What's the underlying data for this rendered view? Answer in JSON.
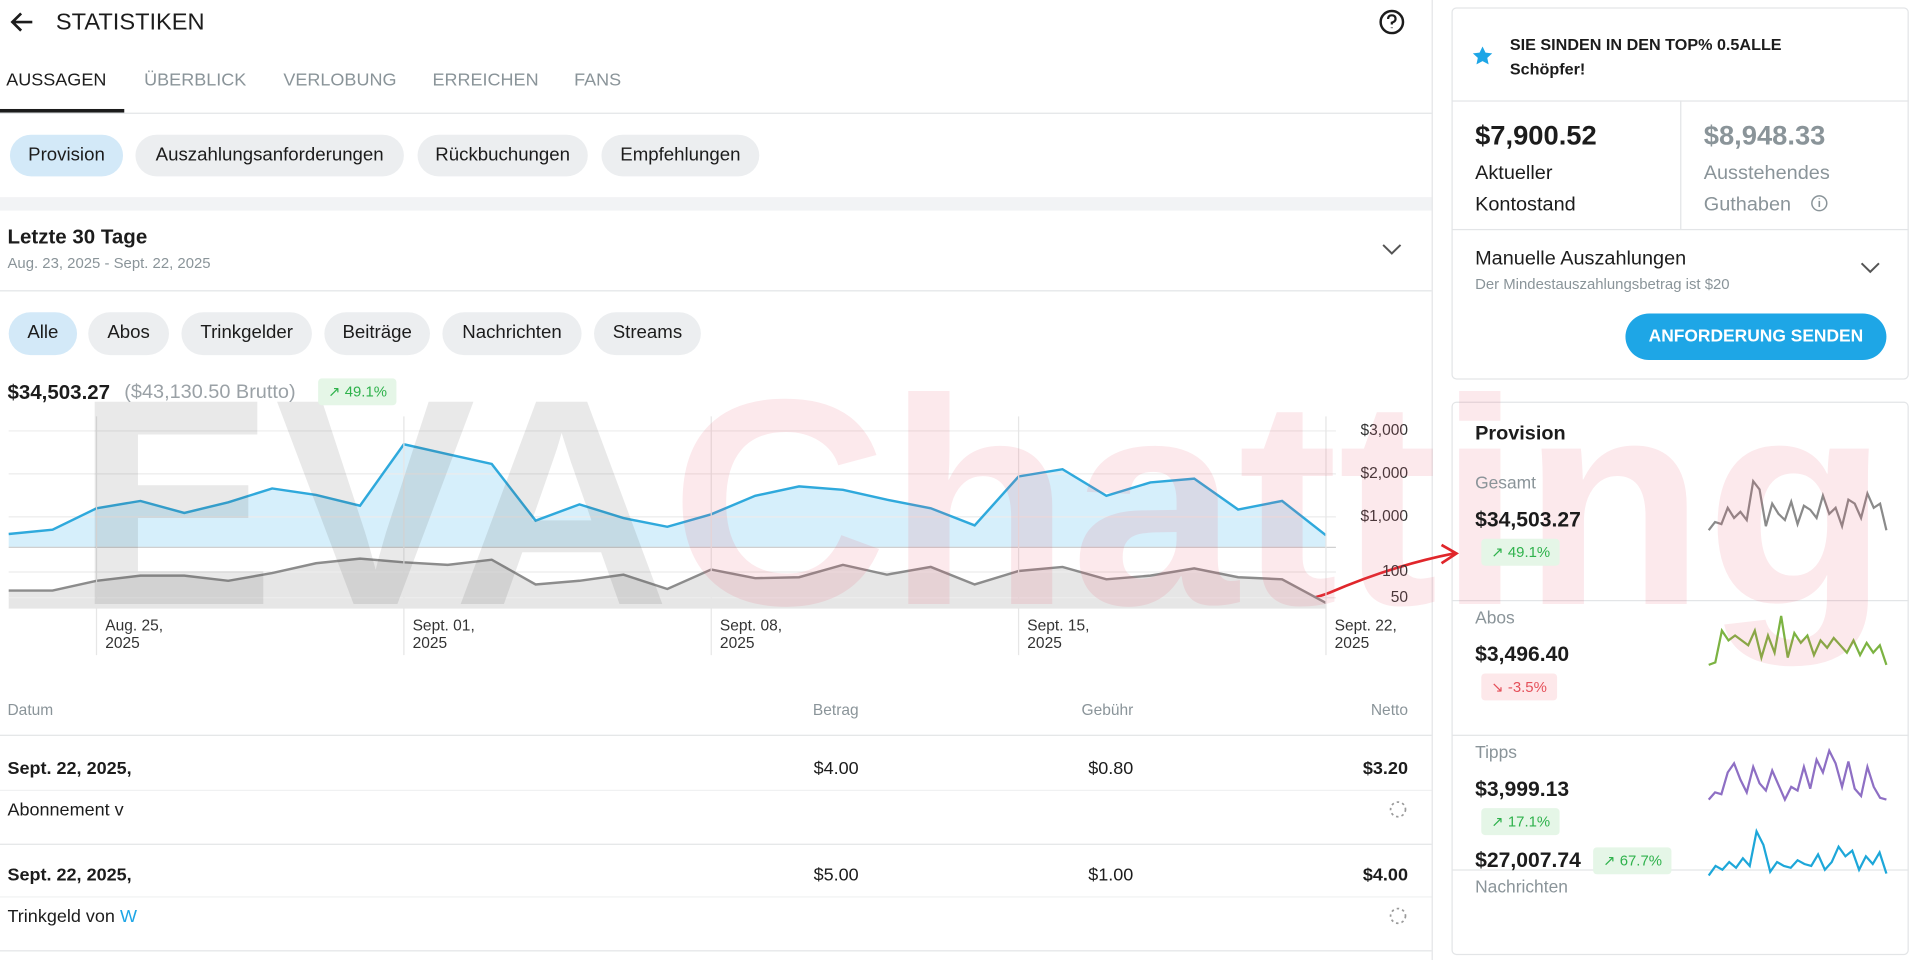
{
  "header": {
    "title": "STATISTIKEN"
  },
  "tabs": [
    "AUSSAGEN",
    "ÜBERBLICK",
    "VERLOBUNG",
    "ERREICHEN",
    "FANS"
  ],
  "subtabs": [
    "Provision",
    "Auszahlungsanforderungen",
    "Rückbuchungen",
    "Empfehlungen"
  ],
  "period": {
    "title": "Letzte 30 Tage",
    "range": "Aug. 23, 2025 - Sept. 22, 2025"
  },
  "filters": [
    "Alle",
    "Abos",
    "Trinkgelder",
    "Beiträge",
    "Nachrichten",
    "Streams"
  ],
  "summary": {
    "net": "$34,503.27",
    "gross": "($43,130.50 Brutto)",
    "change": "49.1%"
  },
  "chart_data": [
    {
      "type": "area",
      "color": "#2fa9dc",
      "fill": "#d6effb",
      "grid": true,
      "ylim": [
        290,
        3340
      ],
      "yticks": [
        {
          "value": 1000,
          "label": "$1,000"
        },
        {
          "value": 2000,
          "label": "$2,000"
        },
        {
          "value": 3000,
          "label": "$3,000"
        }
      ],
      "values": [
        600,
        700,
        1200,
        1370,
        1090,
        1340,
        1660,
        1510,
        1260,
        2690,
        2460,
        2230,
        910,
        1290,
        970,
        770,
        1060,
        1490,
        1710,
        1630,
        1400,
        1200,
        800,
        1940,
        2110,
        1490,
        1800,
        1890,
        1170,
        1370,
        570
      ]
    },
    {
      "type": "area",
      "color": "#8c8c8c",
      "fill": "#e6e6e6",
      "grid": true,
      "ylim": [
        29,
        148
      ],
      "yticks": [
        50,
        100
      ],
      "categories": [
        null,
        null,
        "Aug. 25, 2025",
        null,
        null,
        null,
        null,
        null,
        null,
        "Sept. 01, 2025",
        null,
        null,
        null,
        null,
        null,
        null,
        "Sept. 08, 2025",
        null,
        null,
        null,
        null,
        null,
        null,
        "Sept. 15, 2025",
        null,
        null,
        null,
        null,
        null,
        null,
        "Sept. 22, 2025"
      ],
      "values": [
        64,
        64,
        83,
        93,
        93,
        83,
        98,
        117,
        126,
        119,
        114,
        124,
        76,
        83,
        95,
        67,
        105,
        88,
        90,
        114,
        95,
        110,
        76,
        102,
        110,
        86,
        93,
        107,
        90,
        86,
        40
      ]
    }
  ],
  "table": {
    "headers": [
      "Datum",
      "Betrag",
      "Gebühr",
      "Netto"
    ],
    "rows": [
      {
        "date": "Sept. 22, 2025,",
        "amount": "$4.00",
        "fee": "$0.80",
        "net": "$3.20",
        "description": "Abonnement v"
      },
      {
        "date": "Sept. 22, 2025,",
        "amount": "$5.00",
        "fee": "$1.00",
        "net": "$4.00",
        "description": "Trinkgeld von",
        "link": "W"
      }
    ]
  },
  "banner": {
    "text": "SIE SINDEN IN DEN TOP% 0.5ALLE Schöpfer!"
  },
  "balance": {
    "current": {
      "amount": "$7,900.52",
      "label": "Aktueller Kontostand"
    },
    "pending": {
      "amount": "$8,948.33",
      "label": "Ausstehendes Guthaben"
    }
  },
  "payout": {
    "title": "Manuelle Auszahlungen",
    "note": "Der Mindestauszahlungsbetrag ist $20",
    "button": "ANFORDERUNG SENDEN"
  },
  "provision": {
    "title": "Provision",
    "items": [
      {
        "label": "Gesamt",
        "amount": "$34,503.27",
        "change": "49.1%",
        "color": "#8a8a8a",
        "spark": [
          30,
          38,
          36,
          52,
          42,
          48,
          40,
          78,
          70,
          34,
          56,
          46,
          40,
          58,
          36,
          54,
          50,
          42,
          64,
          46,
          52,
          34,
          60,
          56,
          42,
          66,
          52,
          56,
          30
        ]
      },
      {
        "label": "Abos",
        "amount": "$3,496.40",
        "change": "-3.5%",
        "color": "#7cb342",
        "spark": [
          30,
          32,
          58,
          50,
          54,
          50,
          46,
          58,
          36,
          54,
          40,
          70,
          36,
          56,
          48,
          54,
          38,
          50,
          44,
          52,
          46,
          40,
          50,
          38,
          48,
          40,
          46,
          30
        ]
      },
      {
        "label": "Tipps",
        "amount": "$3,999.13",
        "change": "17.1%",
        "color": "#8e6fc4",
        "spark": [
          30,
          38,
          36,
          60,
          70,
          52,
          38,
          66,
          48,
          40,
          62,
          46,
          30,
          44,
          40,
          66,
          42,
          74,
          60,
          84,
          70,
          44,
          72,
          42,
          34,
          66,
          44,
          32,
          30
        ]
      },
      {
        "label": "Nachrichten",
        "amount": "$27,007.74",
        "change": "67.7%",
        "color": "#1da7d9",
        "spark": [
          30,
          40,
          36,
          44,
          38,
          48,
          40,
          76,
          62,
          34,
          44,
          40,
          38,
          46,
          42,
          40,
          52,
          36,
          44,
          60,
          50,
          56,
          36,
          50,
          42,
          54,
          32
        ]
      }
    ]
  },
  "watermark": {
    "part1": "EVA",
    "part2": "Chatting"
  }
}
